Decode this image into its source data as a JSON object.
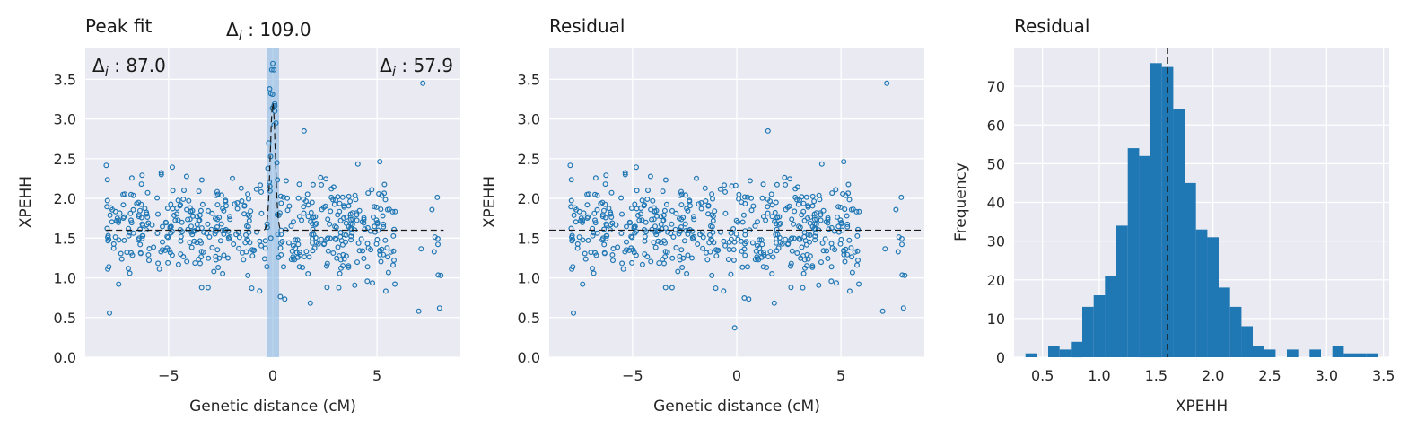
{
  "chart_data": [
    {
      "type": "scatter",
      "title": "Peak fit",
      "xlabel": "Genetic distance (cM)",
      "ylabel": "XPEHH",
      "xlim": [
        -9,
        9
      ],
      "ylim": [
        0,
        3.9
      ],
      "xticks": [
        -5,
        0,
        5
      ],
      "yticks": [
        0.0,
        0.5,
        1.0,
        1.5,
        2.0,
        2.5,
        3.0,
        3.5
      ],
      "grid": true,
      "baseline": 1.6,
      "peak_center": 0.0,
      "peak_amplitude": 1.6,
      "shaded_band": [
        -0.3,
        0.3
      ],
      "annotations": [
        {
          "position": "top-left",
          "text": "Δ_i : 87.0"
        },
        {
          "position": "top-center",
          "text": "Δ_i : 109.0"
        },
        {
          "position": "top-right",
          "text": "Δ_i : 57.9"
        }
      ],
      "color": "#1f77b4"
    },
    {
      "type": "scatter",
      "title": "Residual",
      "xlabel": "Genetic distance (cM)",
      "ylabel": "XPEHH",
      "xlim": [
        -9,
        9
      ],
      "ylim": [
        0,
        3.9
      ],
      "xticks": [
        -5,
        0,
        5
      ],
      "yticks": [
        0.0,
        0.5,
        1.0,
        1.5,
        2.0,
        2.5,
        3.0,
        3.5
      ],
      "grid": true,
      "baseline": 1.6,
      "color": "#1f77b4"
    },
    {
      "type": "bar",
      "title": "Residual",
      "xlabel": "XPEHH",
      "ylabel": "Frequency",
      "xlim": [
        0.25,
        3.55
      ],
      "ylim": [
        0,
        80
      ],
      "xticks": [
        0.5,
        1.0,
        1.5,
        2.0,
        2.5,
        3.0,
        3.5
      ],
      "yticks": [
        0,
        10,
        20,
        30,
        40,
        50,
        60,
        70
      ],
      "grid": true,
      "bin_start": 0.35,
      "bin_width": 0.1,
      "counts": [
        1,
        0,
        3,
        2,
        4,
        13,
        16,
        21,
        34,
        54,
        52,
        76,
        75,
        64,
        45,
        33,
        31,
        18,
        13,
        8,
        3,
        2,
        0,
        2,
        0,
        2,
        0,
        3,
        1,
        1,
        1
      ],
      "vline": 1.6,
      "color": "#1f77b4"
    }
  ]
}
